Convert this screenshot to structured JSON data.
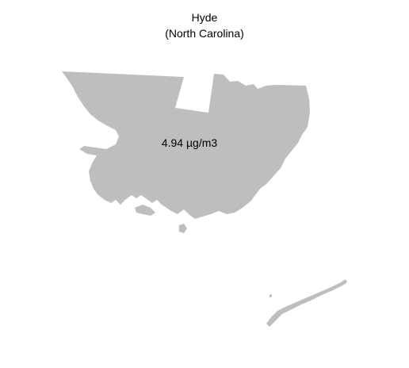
{
  "map": {
    "county": "Hyde",
    "state": "(North Carolina)",
    "value_label": "4.94 µg/m3",
    "fill_color": "#bebebe",
    "background_color": "#ffffff"
  }
}
